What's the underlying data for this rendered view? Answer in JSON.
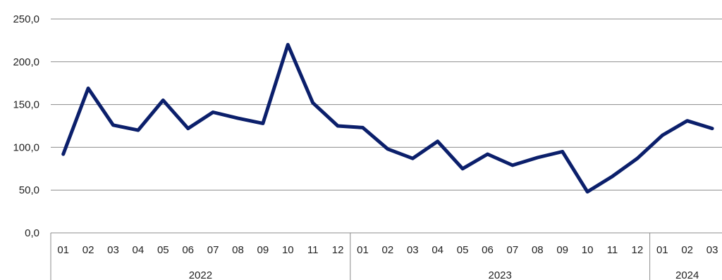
{
  "chart_data": {
    "type": "line",
    "title": "",
    "xlabel": "",
    "ylabel": "",
    "ylim": [
      0,
      250
    ],
    "y_ticks": [
      "0,0",
      "50,0",
      "100,0",
      "150,0",
      "200,0",
      "250,0"
    ],
    "grid": true,
    "legend": "none",
    "line_color": "#0b1f6b",
    "x": [
      "01",
      "02",
      "03",
      "04",
      "05",
      "06",
      "07",
      "08",
      "09",
      "10",
      "11",
      "12",
      "01",
      "02",
      "03",
      "04",
      "05",
      "06",
      "07",
      "08",
      "09",
      "10",
      "11",
      "12",
      "01",
      "02",
      "03"
    ],
    "year_groups": [
      {
        "label": "2022",
        "count": 12
      },
      {
        "label": "2023",
        "count": 12
      },
      {
        "label": "2024",
        "count": 3
      }
    ],
    "series": [
      {
        "values": [
          92,
          169,
          126,
          120,
          155,
          122,
          141,
          134,
          128,
          220,
          152,
          125,
          123,
          98,
          87,
          107,
          75,
          92,
          79,
          88,
          95,
          48,
          66,
          87,
          114,
          131,
          122
        ]
      }
    ]
  }
}
